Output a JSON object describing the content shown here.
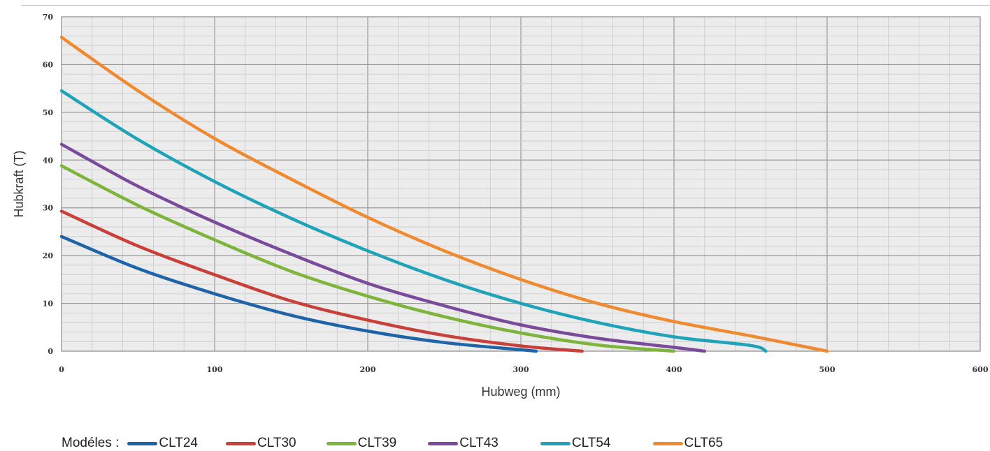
{
  "chart_data": {
    "type": "line",
    "xlabel": "Hubweg (mm)",
    "ylabel": "Hubkraft (T)",
    "xlim": [
      0,
      600
    ],
    "ylim": [
      0,
      70
    ],
    "xticks": [
      0,
      100,
      200,
      300,
      400,
      500,
      600
    ],
    "yticks": [
      0,
      10,
      20,
      30,
      40,
      50,
      60,
      70
    ],
    "grid": true,
    "legend_prefix": "Modéles :",
    "legend_position": "bottom",
    "series": [
      {
        "name": "CLT24",
        "color": "#1f64a8",
        "x": [
          0,
          50,
          100,
          150,
          200,
          250,
          300,
          310
        ],
        "y": [
          24,
          17.3,
          12,
          7.5,
          4.2,
          1.8,
          0.3,
          0
        ]
      },
      {
        "name": "CLT30",
        "color": "#c9403b",
        "x": [
          0,
          50,
          100,
          150,
          200,
          250,
          300,
          340
        ],
        "y": [
          29.3,
          22,
          16,
          10.5,
          6.5,
          3.3,
          1.1,
          0
        ]
      },
      {
        "name": "CLT39",
        "color": "#7fb43c",
        "x": [
          0,
          50,
          100,
          150,
          200,
          250,
          300,
          350,
          400
        ],
        "y": [
          38.8,
          30.5,
          23.3,
          16.7,
          11.5,
          7.2,
          3.8,
          1.3,
          0
        ]
      },
      {
        "name": "CLT43",
        "color": "#7a4b9b",
        "x": [
          0,
          50,
          100,
          150,
          200,
          250,
          300,
          350,
          400,
          420
        ],
        "y": [
          43.3,
          34.5,
          27,
          20.3,
          14.2,
          9.5,
          5.5,
          2.7,
          0.8,
          0
        ]
      },
      {
        "name": "CLT54",
        "color": "#1fa3b8",
        "x": [
          0,
          50,
          100,
          150,
          200,
          250,
          300,
          350,
          400,
          450,
          460
        ],
        "y": [
          54.5,
          44.3,
          35.5,
          27.8,
          21,
          15,
          10,
          6,
          3,
          1.2,
          0
        ]
      },
      {
        "name": "CLT65",
        "color": "#f08a30",
        "x": [
          0,
          50,
          100,
          150,
          200,
          250,
          300,
          350,
          400,
          450,
          500
        ],
        "y": [
          65.7,
          54.5,
          44.5,
          36,
          28,
          21,
          15,
          10,
          6.2,
          3.2,
          0
        ]
      }
    ]
  }
}
